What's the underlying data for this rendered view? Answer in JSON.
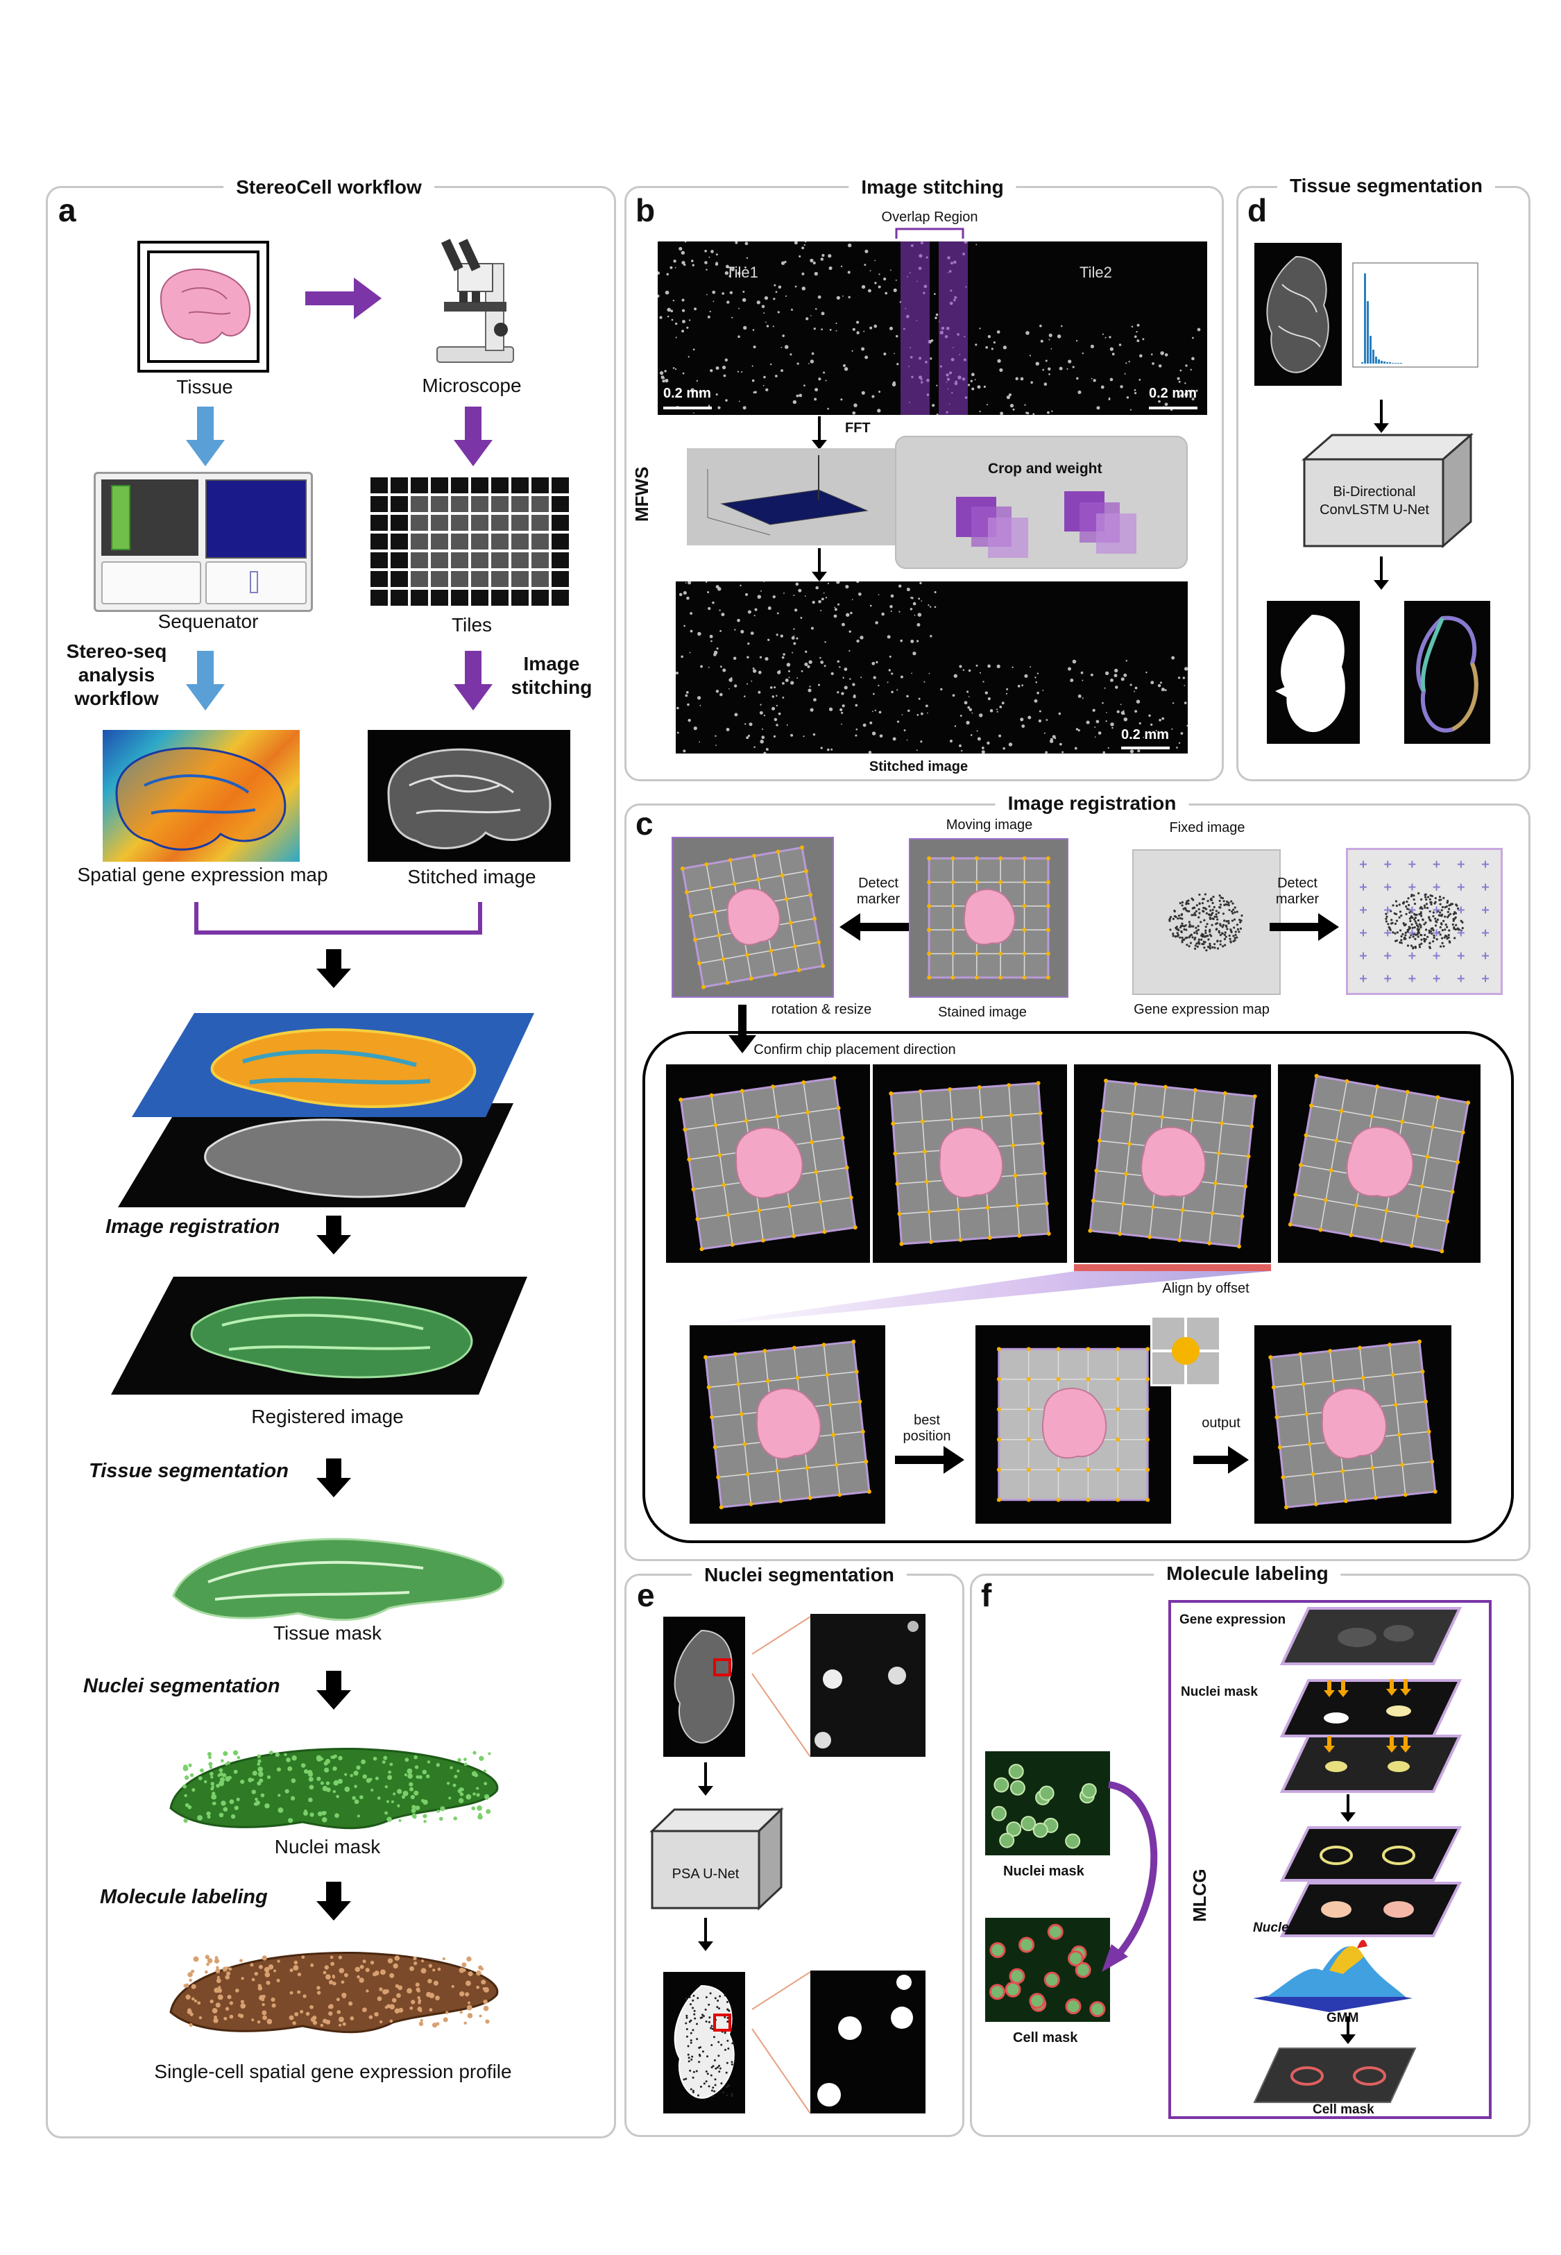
{
  "panels": {
    "a": {
      "letter": "a",
      "title": "StereoCell workflow"
    },
    "b": {
      "letter": "b",
      "title": "Image stitching"
    },
    "c": {
      "letter": "c",
      "title": "Image registration"
    },
    "d": {
      "letter": "d",
      "title": "Tissue segmentation"
    },
    "e": {
      "letter": "e",
      "title": "Nuclei segmentation"
    },
    "f": {
      "letter": "f",
      "title": "Molecule labeling"
    }
  },
  "a": {
    "tissue": "Tissue",
    "microscope": "Microscope",
    "sequenator": "Sequenator",
    "tiles": "Tiles",
    "stereo_seq": "Stereo-seq analysis workflow",
    "image_stitching": "Image stitching",
    "spatial_map": "Spatial gene expression map",
    "stitched_image": "Stitched image",
    "step_registration": "Image registration",
    "registered_image": "Registered image",
    "step_tissue_seg": "Tissue segmentation",
    "tissue_mask": "Tissue mask",
    "step_nuclei_seg": "Nuclei segmentation",
    "nuclei_mask": "Nuclei mask",
    "step_molecule": "Molecule labeling",
    "final_profile": "Single-cell spatial gene expression profile"
  },
  "b": {
    "overlap_region": "Overlap Region",
    "tile1": "Tile1",
    "tile2": "Tile2",
    "scale": "0.2 mm",
    "fft": "FFT",
    "mfws": "MFWS",
    "crop_weight": "Crop and weight",
    "stitched_image": "Stitched image"
  },
  "c": {
    "moving_image": "Moving image",
    "fixed_image": "Fixed image",
    "detect_marker": "Detect marker",
    "stained_image": "Stained image",
    "gene_expression_map": "Gene expression map",
    "rotation_resize": "rotation & resize",
    "confirm_direction": "Confirm chip placement direction",
    "align_offset": "Align by offset",
    "best_position": "best position",
    "output": "output"
  },
  "d": {
    "network": "Bi-Directional ConvLSTM U-Net"
  },
  "e": {
    "network": "PSA U-Net"
  },
  "f": {
    "nuclei_mask": "Nuclei mask",
    "cell_mask": "Cell mask",
    "gene_expression": "Gene expression",
    "layer_nuclei_mask": "Nuclei mask",
    "mlcg": "MLCG",
    "density_fitting": "Nuclei genes density fitting",
    "gmm": "GMM",
    "out_cell_mask": "Cell mask"
  },
  "colors": {
    "purple": "#7b35a6",
    "blue_arrow": "#5a9fd6",
    "tissue_pink": "#f4a6c6",
    "marker_yellow": "#f4b400",
    "panel_border": "#c8c8c8"
  }
}
